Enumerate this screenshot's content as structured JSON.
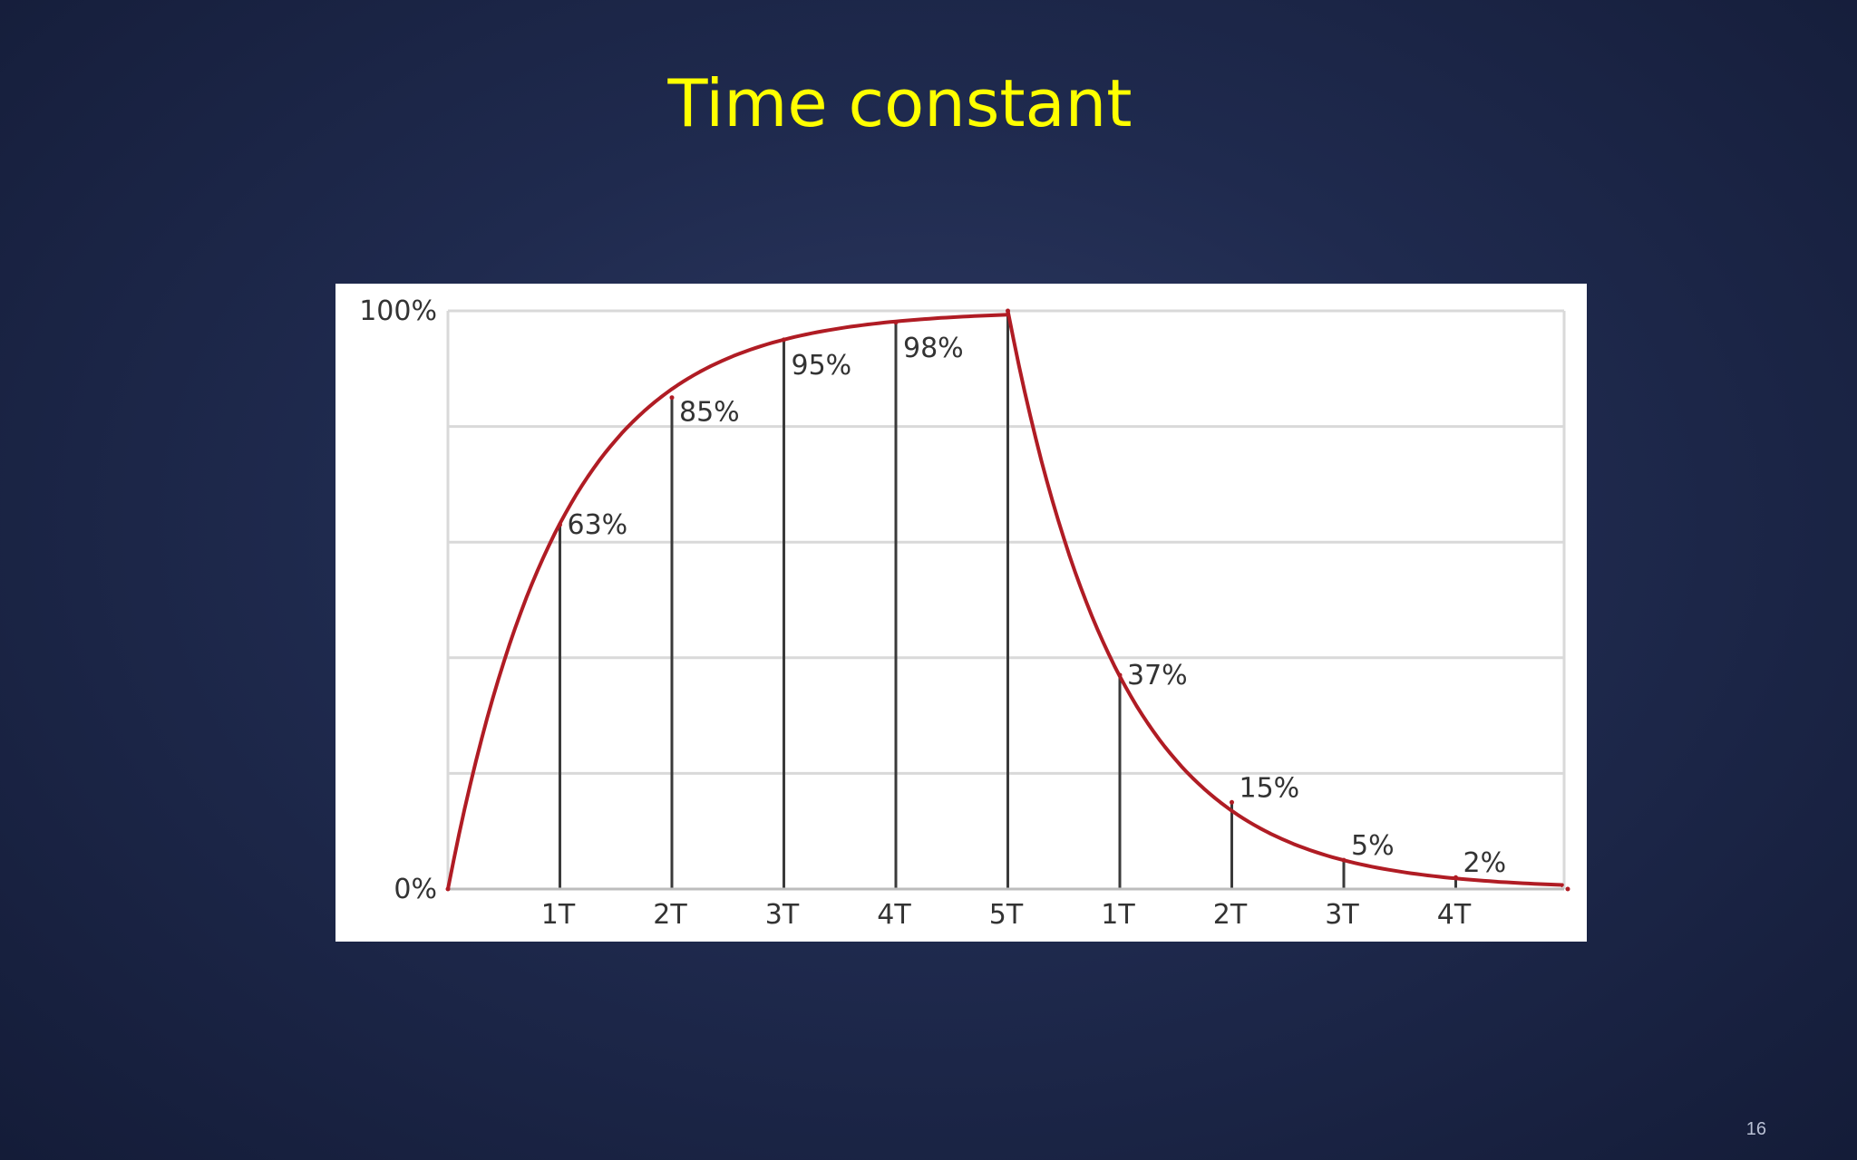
{
  "slide": {
    "title": "Time constant",
    "page_number": "16"
  },
  "chart_data": {
    "type": "line",
    "title": "",
    "xlabel": "",
    "ylabel": "",
    "ylim": [
      0,
      100
    ],
    "y_ticks": [
      {
        "value": 0,
        "label": "0%"
      },
      {
        "value": 100,
        "label": "100%"
      }
    ],
    "x_tick_labels": [
      "1T",
      "2T",
      "3T",
      "4T",
      "5T",
      "1T",
      "2T",
      "3T",
      "4T"
    ],
    "grid": true,
    "series": [
      {
        "color": "#b01c24",
        "x_T": [
          0,
          1,
          2,
          3,
          4,
          5,
          6,
          7,
          8,
          9,
          10
        ],
        "values": [
          0,
          63,
          85,
          95,
          98,
          100,
          37,
          15,
          5,
          2,
          0
        ]
      }
    ],
    "annotations": [
      {
        "x_T": 1,
        "label": "63%"
      },
      {
        "x_T": 2,
        "label": "85%"
      },
      {
        "x_T": 3,
        "label": "95%"
      },
      {
        "x_T": 4,
        "label": "98%"
      },
      {
        "x_T": 6,
        "label": "37%"
      },
      {
        "x_T": 7,
        "label": "15%"
      },
      {
        "x_T": 8,
        "label": "5%"
      },
      {
        "x_T": 9,
        "label": "2%"
      }
    ]
  }
}
